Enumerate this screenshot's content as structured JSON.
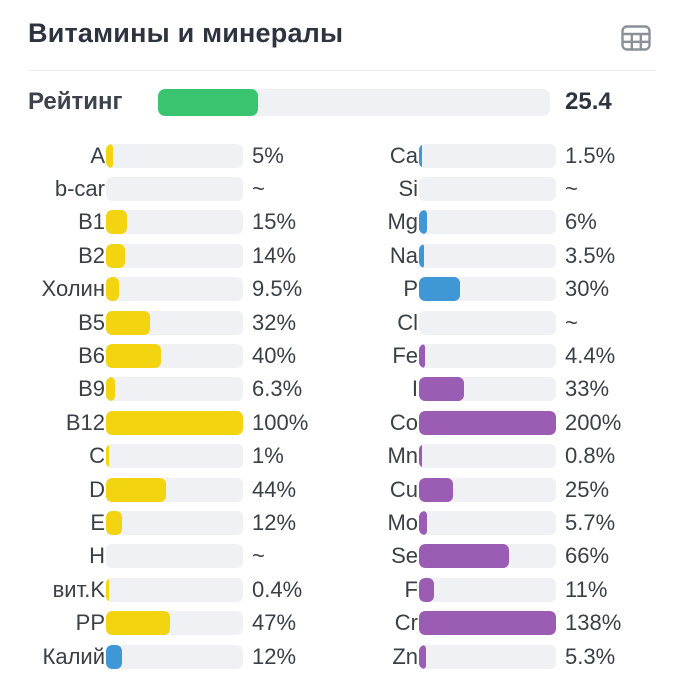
{
  "header": {
    "title": "Витамины и минералы",
    "icon": "table-grid-icon"
  },
  "rating": {
    "label": "Рейтинг",
    "value": "25.4",
    "percent": 25.4
  },
  "colors": {
    "rating_fill": "#3bc470",
    "vitamin": "#f2d411",
    "macro": "#4097d6",
    "micro": "#9b5cb3",
    "track": "#f0f1f4"
  },
  "columns": {
    "left": [
      {
        "label": "A",
        "value": "5%",
        "percent": 5,
        "group": "vitamin"
      },
      {
        "label": "b-car",
        "value": "~",
        "percent": null,
        "group": "vitamin"
      },
      {
        "label": "B1",
        "value": "15%",
        "percent": 15,
        "group": "vitamin"
      },
      {
        "label": "B2",
        "value": "14%",
        "percent": 14,
        "group": "vitamin"
      },
      {
        "label": "Холин",
        "value": "9.5%",
        "percent": 9.5,
        "group": "vitamin"
      },
      {
        "label": "B5",
        "value": "32%",
        "percent": 32,
        "group": "vitamin"
      },
      {
        "label": "B6",
        "value": "40%",
        "percent": 40,
        "group": "vitamin"
      },
      {
        "label": "B9",
        "value": "6.3%",
        "percent": 6.3,
        "group": "vitamin"
      },
      {
        "label": "B12",
        "value": "100%",
        "percent": 100,
        "group": "vitamin"
      },
      {
        "label": "C",
        "value": "1%",
        "percent": 1,
        "group": "vitamin"
      },
      {
        "label": "D",
        "value": "44%",
        "percent": 44,
        "group": "vitamin"
      },
      {
        "label": "E",
        "value": "12%",
        "percent": 12,
        "group": "vitamin"
      },
      {
        "label": "H",
        "value": "~",
        "percent": null,
        "group": "vitamin"
      },
      {
        "label": "вит.K",
        "value": "0.4%",
        "percent": 0.4,
        "group": "vitamin"
      },
      {
        "label": "PP",
        "value": "47%",
        "percent": 47,
        "group": "vitamin"
      },
      {
        "label": "Калий",
        "value": "12%",
        "percent": 12,
        "group": "macro"
      }
    ],
    "right": [
      {
        "label": "Ca",
        "value": "1.5%",
        "percent": 1.5,
        "group": "macro"
      },
      {
        "label": "Si",
        "value": "~",
        "percent": null,
        "group": "macro"
      },
      {
        "label": "Mg",
        "value": "6%",
        "percent": 6,
        "group": "macro"
      },
      {
        "label": "Na",
        "value": "3.5%",
        "percent": 3.5,
        "group": "macro"
      },
      {
        "label": "P",
        "value": "30%",
        "percent": 30,
        "group": "macro"
      },
      {
        "label": "Cl",
        "value": "~",
        "percent": null,
        "group": "macro"
      },
      {
        "label": "Fe",
        "value": "4.4%",
        "percent": 4.4,
        "group": "micro"
      },
      {
        "label": "I",
        "value": "33%",
        "percent": 33,
        "group": "micro"
      },
      {
        "label": "Co",
        "value": "200%",
        "percent": 200,
        "group": "micro"
      },
      {
        "label": "Mn",
        "value": "0.8%",
        "percent": 0.8,
        "group": "micro"
      },
      {
        "label": "Cu",
        "value": "25%",
        "percent": 25,
        "group": "micro"
      },
      {
        "label": "Mo",
        "value": "5.7%",
        "percent": 5.7,
        "group": "micro"
      },
      {
        "label": "Se",
        "value": "66%",
        "percent": 66,
        "group": "micro"
      },
      {
        "label": "F",
        "value": "11%",
        "percent": 11,
        "group": "micro"
      },
      {
        "label": "Cr",
        "value": "138%",
        "percent": 138,
        "group": "micro"
      },
      {
        "label": "Zn",
        "value": "5.3%",
        "percent": 5.3,
        "group": "micro"
      }
    ]
  },
  "chart_data": {
    "type": "bar",
    "title": "Витамины и минералы",
    "orientation": "horizontal",
    "value_axis_range": [
      0,
      100
    ],
    "note_null_value": "~",
    "rating": {
      "label": "Рейтинг",
      "value": 25.4,
      "max": 100,
      "color": "#3bc470"
    },
    "series": [
      {
        "name": "left_column",
        "categories": [
          "A",
          "b-car",
          "B1",
          "B2",
          "Холин",
          "B5",
          "B6",
          "B9",
          "B12",
          "C",
          "D",
          "E",
          "H",
          "вит.K",
          "PP",
          "Калий"
        ],
        "values": [
          5,
          null,
          15,
          14,
          9.5,
          32,
          40,
          6.3,
          100,
          1,
          44,
          12,
          null,
          0.4,
          47,
          12
        ],
        "labels": [
          "5%",
          "~",
          "15%",
          "14%",
          "9.5%",
          "32%",
          "40%",
          "6.3%",
          "100%",
          "1%",
          "44%",
          "12%",
          "~",
          "0.4%",
          "47%",
          "12%"
        ],
        "bar_colors": [
          "#f2d411",
          "#f2d411",
          "#f2d411",
          "#f2d411",
          "#f2d411",
          "#f2d411",
          "#f2d411",
          "#f2d411",
          "#f2d411",
          "#f2d411",
          "#f2d411",
          "#f2d411",
          "#f2d411",
          "#f2d411",
          "#f2d411",
          "#4097d6"
        ]
      },
      {
        "name": "right_column",
        "categories": [
          "Ca",
          "Si",
          "Mg",
          "Na",
          "P",
          "Cl",
          "Fe",
          "I",
          "Co",
          "Mn",
          "Cu",
          "Mo",
          "Se",
          "F",
          "Cr",
          "Zn"
        ],
        "values": [
          1.5,
          null,
          6,
          3.5,
          30,
          null,
          4.4,
          33,
          200,
          0.8,
          25,
          5.7,
          66,
          11,
          138,
          5.3
        ],
        "labels": [
          "1.5%",
          "~",
          "6%",
          "3.5%",
          "30%",
          "~",
          "4.4%",
          "33%",
          "200%",
          "0.8%",
          "25%",
          "5.7%",
          "66%",
          "11%",
          "138%",
          "5.3%"
        ],
        "bar_colors": [
          "#4097d6",
          "#4097d6",
          "#4097d6",
          "#4097d6",
          "#4097d6",
          "#4097d6",
          "#9b5cb3",
          "#9b5cb3",
          "#9b5cb3",
          "#9b5cb3",
          "#9b5cb3",
          "#9b5cb3",
          "#9b5cb3",
          "#9b5cb3",
          "#9b5cb3",
          "#9b5cb3"
        ]
      }
    ]
  }
}
